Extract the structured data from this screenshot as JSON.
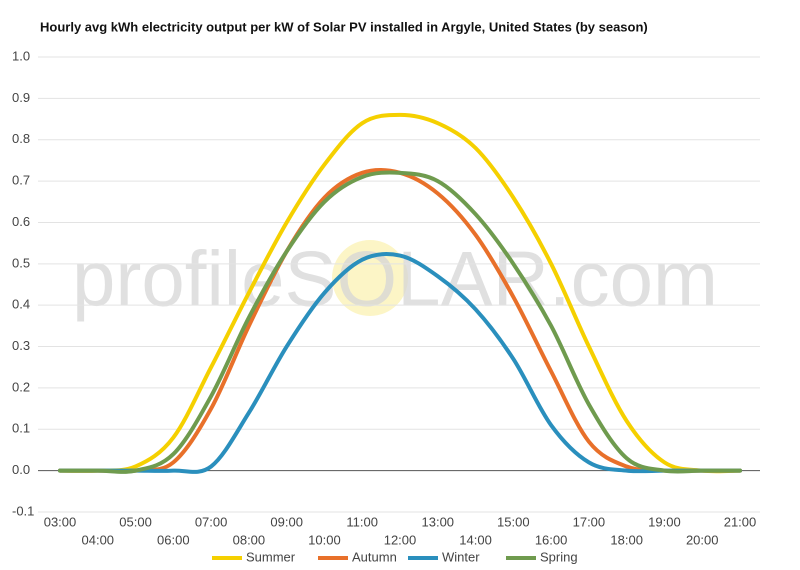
{
  "chart_data": {
    "type": "line",
    "title": "Hourly avg kWh electricity output per kW of Solar PV installed in Argyle, United States (by season)",
    "watermark": "profileSOLAR.com",
    "categories": [
      "03:00",
      "04:00",
      "05:00",
      "06:00",
      "07:00",
      "08:00",
      "09:00",
      "10:00",
      "11:00",
      "12:00",
      "13:00",
      "14:00",
      "15:00",
      "16:00",
      "17:00",
      "18:00",
      "19:00",
      "20:00",
      "21:00"
    ],
    "series": [
      {
        "name": "Summer",
        "color": "#f5d000",
        "values": [
          0,
          0,
          0.01,
          0.08,
          0.25,
          0.43,
          0.6,
          0.74,
          0.84,
          0.86,
          0.84,
          0.78,
          0.66,
          0.5,
          0.3,
          0.12,
          0.02,
          0,
          0
        ]
      },
      {
        "name": "Autumn",
        "color": "#e8702a",
        "values": [
          0,
          0,
          0,
          0.02,
          0.15,
          0.35,
          0.53,
          0.66,
          0.72,
          0.72,
          0.67,
          0.57,
          0.42,
          0.24,
          0.07,
          0.01,
          0,
          0,
          0
        ]
      },
      {
        "name": "Winter",
        "color": "#2a8fbd",
        "values": [
          0,
          0,
          0,
          0,
          0.01,
          0.14,
          0.3,
          0.43,
          0.51,
          0.52,
          0.47,
          0.39,
          0.27,
          0.11,
          0.02,
          0,
          0,
          0,
          0
        ]
      },
      {
        "name": "Spring",
        "color": "#6f9b4e",
        "values": [
          0,
          0,
          0,
          0.04,
          0.18,
          0.37,
          0.53,
          0.65,
          0.71,
          0.72,
          0.7,
          0.62,
          0.5,
          0.35,
          0.16,
          0.03,
          0,
          0,
          0
        ]
      }
    ],
    "ylim": [
      -0.1,
      1.0
    ],
    "yticks": [
      {
        "value": 1.0,
        "label": "1.0"
      },
      0.9,
      0.8,
      0.7,
      0.6,
      0.5,
      0.4,
      0.3,
      0.2,
      0.1,
      {
        "value": 0,
        "label": "0.0"
      },
      -0.1
    ],
    "grid": true
  }
}
